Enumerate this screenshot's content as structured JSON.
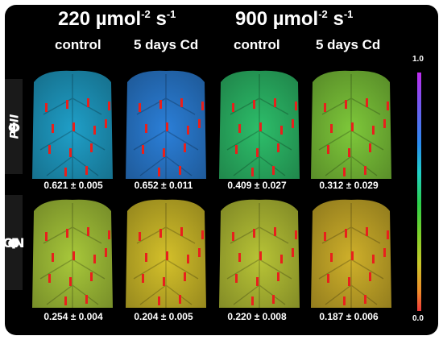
{
  "header": {
    "low_light": {
      "value": "220",
      "unit": "µmol",
      "exp1": "-2",
      "s": "s",
      "exp2": "-1"
    },
    "high_light": {
      "value": "900",
      "unit": "µmol",
      "exp1": "-2",
      "s": "s",
      "exp2": "-1"
    }
  },
  "columns": [
    "control",
    "5 days Cd",
    "control",
    "5 days Cd"
  ],
  "rows": [
    {
      "symbol": "Φ",
      "subscript": "PSII",
      "values": [
        "0.621 ± 0.005",
        "0.652 ± 0.011",
        "0.409 ± 0.027",
        "0.312 ± 0.029"
      ]
    },
    {
      "symbol": "Φ",
      "subscript": "NO",
      "values": [
        "0.254 ± 0.004",
        "0.204 ± 0.005",
        "0.220 ± 0.008",
        "0.187 ± 0.006"
      ]
    }
  ],
  "colorbar": {
    "max_label": "1.0",
    "min_label": "0.0"
  },
  "leaf_colors": [
    [
      "#1f9fc8",
      "#2b7fd8",
      "#2dbe6a",
      "#7ec83a"
    ],
    [
      "#a8c83a",
      "#d4c02a",
      "#b8c436",
      "#cfb02a"
    ]
  ]
}
